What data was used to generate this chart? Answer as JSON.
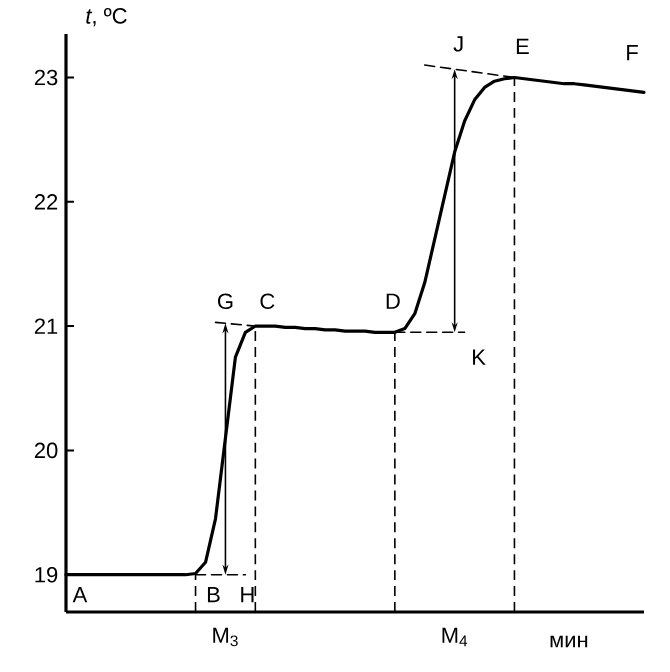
{
  "chart_data": {
    "type": "line",
    "xlabel": "мин",
    "ylabel": "*t*, ºC",
    "categories": [
      null,
      null,
      null,
      null,
      null,
      null,
      null,
      null,
      null,
      null,
      null,
      null,
      null,
      null,
      null,
      null,
      "M$_{3}$",
      null,
      null,
      null,
      null,
      null,
      null,
      null,
      null,
      null,
      null,
      null,
      null,
      null,
      null,
      null,
      null,
      null,
      null,
      null,
      null,
      null,
      null,
      "M$_{4}$",
      null,
      null,
      null,
      null,
      null,
      null,
      null,
      null,
      null,
      null,
      null,
      null,
      null,
      null,
      null,
      null,
      null,
      null,
      null
    ],
    "ylim": [
      18.7,
      23.35
    ],
    "yticks": [
      19,
      20,
      21,
      22,
      23
    ],
    "grid": false,
    "marker": "none",
    "series": [
      {
        "color": "#000000",
        "line_style": "solid",
        "values": [
          19.0,
          19.0,
          19.0,
          19.0,
          19.0,
          19.0,
          19.0,
          19.0,
          19.0,
          19.0,
          19.0,
          19.0,
          19.0,
          19.01,
          19.1,
          19.45,
          20.1,
          20.75,
          20.95,
          21.0,
          21.0,
          21.0,
          20.99,
          20.99,
          20.98,
          20.98,
          20.97,
          20.97,
          20.96,
          20.96,
          20.96,
          20.95,
          20.95,
          20.95,
          20.98,
          21.1,
          21.35,
          21.7,
          22.05,
          22.4,
          22.65,
          22.82,
          22.92,
          22.97,
          22.99,
          23.0,
          22.99,
          22.98,
          22.97,
          22.96,
          22.95,
          22.95,
          22.94,
          22.93,
          22.92,
          22.91,
          22.9,
          22.89,
          22.88
        ]
      },
      {
        "color": "#000000",
        "line_style": "dashed",
        "values": [
          null,
          null,
          null,
          null,
          null,
          null,
          null,
          null,
          null,
          null,
          null,
          null,
          null,
          null,
          null,
          null,
          null,
          null,
          null,
          null,
          null,
          null,
          null,
          null,
          null,
          null,
          null,
          null,
          null,
          null,
          null,
          null,
          null,
          null,
          null,
          null,
          23.1,
          null,
          null,
          null,
          null,
          null,
          null,
          null,
          null,
          23.0,
          null,
          null,
          null,
          null,
          null,
          null,
          null,
          null,
          null,
          null,
          null,
          null,
          null
        ]
      },
      {
        "color": "#000000",
        "line_style": "dashed",
        "values": [
          null,
          null,
          null,
          null,
          null,
          null,
          null,
          null,
          null,
          null,
          null,
          null,
          null,
          null,
          null,
          21.03,
          null,
          null,
          null,
          21.0,
          null,
          null,
          null,
          null,
          null,
          null,
          null,
          null,
          null,
          null,
          null,
          null,
          null,
          null,
          null,
          null,
          null,
          null,
          null,
          null,
          null,
          null,
          null,
          null,
          null,
          null,
          null,
          null,
          null,
          null,
          null,
          null,
          null,
          null,
          null,
          null,
          null,
          null,
          null
        ]
      },
      {
        "color": "#000000",
        "line_style": "dashed",
        "values": [
          null,
          null,
          null,
          null,
          null,
          null,
          null,
          null,
          null,
          null,
          null,
          null,
          null,
          null,
          null,
          null,
          null,
          null,
          null,
          null,
          null,
          null,
          null,
          null,
          null,
          null,
          null,
          null,
          null,
          null,
          null,
          null,
          null,
          20.95,
          null,
          null,
          null,
          null,
          null,
          null,
          20.95,
          null,
          null,
          null,
          null,
          null,
          null,
          null,
          null,
          null,
          null,
          null,
          null,
          null,
          null,
          null,
          null,
          null,
          null
        ]
      },
      {
        "color": "#000000",
        "line_style": "dashed",
        "values": [
          null,
          null,
          null,
          null,
          null,
          null,
          null,
          null,
          null,
          null,
          null,
          null,
          null,
          19.0,
          null,
          null,
          null,
          null,
          19.0,
          null,
          null,
          null,
          null,
          null,
          null,
          null,
          null,
          null,
          null,
          null,
          null,
          null,
          null,
          null,
          null,
          null,
          null,
          null,
          null,
          null,
          null,
          null,
          null,
          null,
          null,
          null,
          null,
          null,
          null,
          null,
          null,
          null,
          null,
          null,
          null,
          null,
          null,
          null,
          null
        ]
      }
    ],
    "annotations": [
      "A",
      "B",
      "H",
      "G",
      "C",
      "D",
      "K",
      "J",
      "E",
      "F"
    ]
  }
}
